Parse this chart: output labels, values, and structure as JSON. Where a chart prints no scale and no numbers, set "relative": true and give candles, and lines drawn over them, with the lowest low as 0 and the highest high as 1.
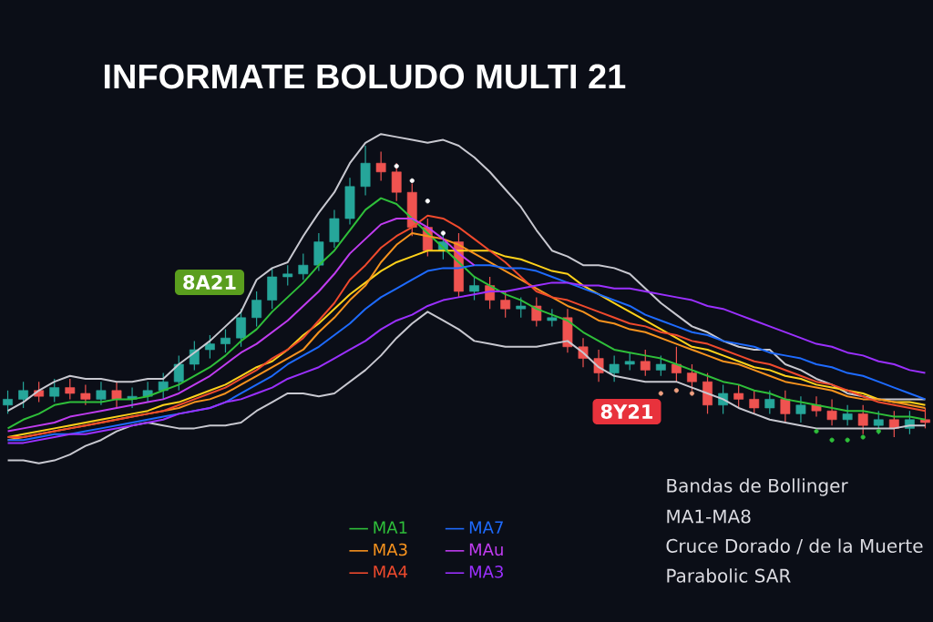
{
  "chart_data": {
    "type": "candlestick",
    "title": "INFORMATE BOLUDO MULTI 21",
    "relative": true,
    "legend": "bottom",
    "categories": [
      null,
      null,
      null,
      null,
      null,
      null,
      null,
      null,
      null,
      null,
      null,
      null,
      null,
      null,
      null,
      null,
      null,
      null,
      null,
      null,
      null,
      null,
      null,
      null,
      null,
      null,
      null,
      null,
      null,
      null,
      null,
      null,
      null,
      null,
      null,
      null,
      null,
      null,
      null,
      null,
      null,
      null,
      null,
      null,
      null,
      null,
      null,
      null,
      null,
      null,
      null,
      null,
      null,
      null,
      null,
      null,
      null,
      null,
      null,
      null
    ],
    "annotations": [
      "8A21",
      "8Y21",
      "Bandas de Bollinger",
      "MA1-MA8",
      "Cruce Dorado / de la Muerte",
      "Parabolic SAR"
    ],
    "series": [
      {
        "type": "line",
        "color": "#c8c8d0",
        "values": [
          0.09,
          0.12,
          0.16,
          0.19,
          0.21,
          0.2,
          0.2,
          0.19,
          0.19,
          0.2,
          0.2,
          0.25,
          0.29,
          0.33,
          0.38,
          0.43,
          0.54,
          0.58,
          0.6,
          0.69,
          0.77,
          0.84,
          0.94,
          1.01,
          1.04,
          1.03,
          1.02,
          1.01,
          1.02,
          1.0,
          0.96,
          0.91,
          0.85,
          0.79,
          0.71,
          0.64,
          0.62,
          0.59,
          0.59,
          0.58,
          0.56,
          0.51,
          0.46,
          0.42,
          0.38,
          0.36,
          0.33,
          0.31,
          0.3,
          0.3,
          0.25,
          0.23,
          0.2,
          0.18,
          0.15,
          0.14,
          0.13,
          0.13,
          0.13,
          0.13
        ]
      },
      {
        "type": "line",
        "color": "#c8c8d0",
        "values": [
          -0.08,
          -0.08,
          -0.09,
          -0.08,
          -0.06,
          -0.03,
          -0.01,
          0.02,
          0.04,
          0.05,
          0.04,
          0.03,
          0.03,
          0.04,
          0.04,
          0.05,
          0.09,
          0.12,
          0.15,
          0.15,
          0.14,
          0.15,
          0.19,
          0.23,
          0.28,
          0.34,
          0.39,
          0.43,
          0.4,
          0.37,
          0.33,
          0.32,
          0.31,
          0.31,
          0.31,
          0.32,
          0.33,
          0.29,
          0.24,
          0.21,
          0.2,
          0.19,
          0.19,
          0.19,
          0.17,
          0.15,
          0.13,
          0.1,
          0.08,
          0.06,
          0.05,
          0.04,
          0.03,
          0.03,
          0.03,
          0.03,
          0.03,
          0.03,
          0.04,
          0.04
        ]
      },
      {
        "type": "line",
        "color": "#ffd21a",
        "values": [
          0.0,
          0.01,
          0.02,
          0.03,
          0.04,
          0.05,
          0.06,
          0.07,
          0.08,
          0.09,
          0.11,
          0.12,
          0.14,
          0.16,
          0.18,
          0.21,
          0.24,
          0.26,
          0.3,
          0.35,
          0.39,
          0.44,
          0.49,
          0.53,
          0.57,
          0.6,
          0.62,
          0.64,
          0.64,
          0.64,
          0.64,
          0.64,
          0.62,
          0.61,
          0.59,
          0.57,
          0.56,
          0.52,
          0.49,
          0.46,
          0.43,
          0.4,
          0.37,
          0.34,
          0.31,
          0.3,
          0.28,
          0.26,
          0.24,
          0.23,
          0.21,
          0.2,
          0.18,
          0.17,
          0.16,
          0.15,
          0.13,
          0.12,
          0.12,
          0.11
        ]
      },
      {
        "type": "line",
        "name": "MA1",
        "color": "#2fbf3a",
        "values": [
          0.03,
          0.06,
          0.08,
          0.11,
          0.12,
          0.12,
          0.12,
          0.13,
          0.13,
          0.14,
          0.16,
          0.18,
          0.21,
          0.24,
          0.28,
          0.33,
          0.37,
          0.43,
          0.48,
          0.53,
          0.59,
          0.64,
          0.71,
          0.78,
          0.82,
          0.8,
          0.75,
          0.7,
          0.65,
          0.6,
          0.55,
          0.52,
          0.49,
          0.47,
          0.44,
          0.42,
          0.4,
          0.36,
          0.33,
          0.3,
          0.29,
          0.28,
          0.27,
          0.25,
          0.23,
          0.21,
          0.19,
          0.18,
          0.16,
          0.15,
          0.13,
          0.12,
          0.11,
          0.1,
          0.09,
          0.09,
          0.08,
          0.07,
          0.07,
          0.06
        ]
      },
      {
        "type": "line",
        "name": "MA3",
        "color": "#f7931e",
        "values": [
          -0.01,
          0.0,
          0.01,
          0.02,
          0.03,
          0.04,
          0.05,
          0.06,
          0.07,
          0.08,
          0.09,
          0.1,
          0.12,
          0.13,
          0.15,
          0.18,
          0.21,
          0.24,
          0.27,
          0.3,
          0.36,
          0.41,
          0.47,
          0.52,
          0.6,
          0.66,
          0.7,
          0.69,
          0.68,
          0.66,
          0.63,
          0.6,
          0.57,
          0.54,
          0.51,
          0.48,
          0.45,
          0.43,
          0.4,
          0.39,
          0.37,
          0.36,
          0.34,
          0.32,
          0.3,
          0.28,
          0.26,
          0.25,
          0.23,
          0.21,
          0.19,
          0.18,
          0.17,
          0.16,
          0.14,
          0.13,
          0.13,
          0.12,
          0.11,
          0.1
        ]
      },
      {
        "type": "line",
        "name": "MA4",
        "color": "#f04a2d",
        "values": [
          0.0,
          0.0,
          0.01,
          0.02,
          0.03,
          0.04,
          0.05,
          0.06,
          0.07,
          0.08,
          0.09,
          0.11,
          0.13,
          0.15,
          0.17,
          0.2,
          0.23,
          0.27,
          0.3,
          0.34,
          0.4,
          0.46,
          0.54,
          0.59,
          0.65,
          0.69,
          0.72,
          0.76,
          0.75,
          0.72,
          0.68,
          0.64,
          0.6,
          0.55,
          0.5,
          0.48,
          0.47,
          0.45,
          0.43,
          0.41,
          0.39,
          0.38,
          0.36,
          0.35,
          0.33,
          0.32,
          0.3,
          0.28,
          0.26,
          0.25,
          0.23,
          0.21,
          0.19,
          0.18,
          0.16,
          0.14,
          0.12,
          0.11,
          0.1,
          0.09
        ]
      },
      {
        "type": "line",
        "name": "MA7",
        "color": "#1e6bff",
        "values": [
          -0.01,
          -0.01,
          0.0,
          0.01,
          0.01,
          0.02,
          0.03,
          0.04,
          0.05,
          0.06,
          0.07,
          0.08,
          0.09,
          0.1,
          0.12,
          0.15,
          0.18,
          0.21,
          0.25,
          0.28,
          0.31,
          0.35,
          0.39,
          0.44,
          0.48,
          0.51,
          0.54,
          0.57,
          0.58,
          0.58,
          0.59,
          0.59,
          0.58,
          0.58,
          0.57,
          0.55,
          0.53,
          0.51,
          0.49,
          0.47,
          0.45,
          0.42,
          0.4,
          0.38,
          0.36,
          0.35,
          0.33,
          0.32,
          0.31,
          0.29,
          0.28,
          0.27,
          0.25,
          0.24,
          0.22,
          0.21,
          0.19,
          0.17,
          0.15,
          0.13
        ]
      },
      {
        "type": "line",
        "name": "MAu",
        "color": "#c03cf0",
        "values": [
          0.02,
          0.03,
          0.04,
          0.05,
          0.07,
          0.08,
          0.09,
          0.1,
          0.11,
          0.12,
          0.13,
          0.15,
          0.18,
          0.21,
          0.25,
          0.29,
          0.32,
          0.36,
          0.4,
          0.45,
          0.5,
          0.56,
          0.63,
          0.68,
          0.73,
          0.75,
          0.75,
          0.72,
          0.68,
          0.63,
          0.59,
          null,
          null,
          null,
          null,
          null,
          null,
          null,
          null,
          null,
          null,
          null,
          null,
          null,
          null,
          null,
          null,
          null,
          null,
          null,
          null,
          null,
          null,
          null,
          null,
          null,
          null,
          null,
          null,
          null
        ]
      },
      {
        "type": "line",
        "name": "MA3",
        "color": "#9b30ff",
        "values": [
          -0.02,
          -0.02,
          -0.01,
          0.0,
          0.01,
          0.01,
          0.02,
          0.03,
          0.04,
          0.05,
          0.06,
          0.08,
          0.09,
          0.1,
          0.12,
          0.13,
          0.15,
          0.17,
          0.2,
          0.22,
          0.24,
          0.27,
          0.3,
          0.33,
          0.37,
          0.4,
          0.42,
          0.45,
          0.47,
          0.48,
          0.49,
          0.5,
          0.5,
          0.51,
          0.52,
          0.53,
          0.53,
          0.52,
          0.52,
          0.51,
          0.51,
          0.5,
          0.49,
          0.48,
          0.47,
          0.45,
          0.44,
          0.42,
          0.4,
          0.38,
          0.36,
          0.34,
          0.32,
          0.31,
          0.29,
          0.28,
          0.26,
          0.25,
          0.23,
          0.22
        ]
      },
      {
        "type": "scatter",
        "marker": "circle",
        "color": "#ffffff",
        "values": [
          null,
          null,
          null,
          null,
          null,
          null,
          null,
          null,
          null,
          null,
          null,
          null,
          null,
          null,
          null,
          null,
          null,
          null,
          null,
          null,
          null,
          null,
          null,
          null,
          null,
          0.93,
          0.88,
          0.81,
          0.7,
          null,
          null,
          null,
          null,
          null,
          null,
          null,
          null,
          null,
          null,
          null,
          null,
          null,
          null,
          null,
          null,
          null,
          null,
          null,
          null,
          null,
          null,
          null,
          null,
          null,
          null,
          null,
          null,
          null,
          null,
          null
        ]
      },
      {
        "type": "scatter",
        "marker": "circle",
        "color": "#f0a080",
        "values": [
          null,
          null,
          null,
          null,
          null,
          null,
          null,
          null,
          null,
          null,
          null,
          null,
          null,
          null,
          null,
          null,
          null,
          null,
          null,
          null,
          null,
          null,
          null,
          null,
          null,
          null,
          null,
          null,
          null,
          null,
          null,
          null,
          null,
          null,
          null,
          null,
          null,
          null,
          null,
          null,
          null,
          null,
          0.15,
          0.16,
          0.15,
          null,
          null,
          null,
          null,
          null,
          null,
          null,
          null,
          null,
          null,
          null,
          null,
          null,
          null,
          null
        ]
      },
      {
        "type": "scatter",
        "marker": "circle",
        "color": "#2fbf3a",
        "values": [
          null,
          null,
          null,
          null,
          null,
          null,
          null,
          null,
          null,
          null,
          null,
          null,
          null,
          null,
          null,
          null,
          null,
          null,
          null,
          null,
          null,
          null,
          null,
          null,
          null,
          null,
          null,
          null,
          null,
          null,
          null,
          null,
          null,
          null,
          null,
          null,
          null,
          null,
          null,
          null,
          null,
          null,
          null,
          null,
          null,
          null,
          null,
          null,
          null,
          null,
          null,
          null,
          0.02,
          -0.01,
          -0.01,
          0.0,
          0.02,
          null,
          null,
          null
        ]
      },
      {
        "type": "candlestick",
        "colors": [
          "#26a69a",
          "#26a69a",
          "#ef5350",
          "#26a69a",
          "#ef5350",
          "#ef5350",
          "#26a69a",
          "#ef5350",
          "#26a69a",
          "#26a69a",
          "#26a69a",
          "#26a69a",
          "#26a69a",
          "#26a69a",
          "#26a69a",
          "#26a69a",
          "#26a69a",
          "#26a69a",
          "#26a69a",
          "#26a69a",
          "#26a69a",
          "#26a69a",
          "#26a69a",
          "#26a69a",
          "#ef5350",
          "#ef5350",
          "#ef5350",
          "#ef5350",
          "#26a69a",
          "#ef5350",
          "#26a69a",
          "#ef5350",
          "#ef5350",
          "#26a69a",
          "#ef5350",
          "#26a69a",
          "#ef5350",
          "#ef5350",
          "#ef5350",
          "#26a69a",
          "#26a69a",
          "#ef5350",
          "#26a69a",
          "#ef5350",
          "#ef5350",
          "#ef5350",
          "#26a69a",
          "#ef5350",
          "#ef5350",
          "#26a69a",
          "#ef5350",
          "#26a69a",
          "#ef5350",
          "#ef5350",
          "#26a69a",
          "#ef5350",
          "#26a69a",
          "#ef5350",
          "#26a69a",
          "#ef5350"
        ],
        "ohlc": [
          [
            0.11,
            0.16,
            0.08,
            0.13
          ],
          [
            0.13,
            0.19,
            0.1,
            0.16
          ],
          [
            0.16,
            0.19,
            0.12,
            0.14
          ],
          [
            0.14,
            0.2,
            0.12,
            0.17
          ],
          [
            0.17,
            0.2,
            0.13,
            0.15
          ],
          [
            0.15,
            0.18,
            0.11,
            0.13
          ],
          [
            0.13,
            0.19,
            0.11,
            0.16
          ],
          [
            0.16,
            0.19,
            0.1,
            0.13
          ],
          [
            0.13,
            0.17,
            0.1,
            0.14
          ],
          [
            0.14,
            0.19,
            0.12,
            0.16
          ],
          [
            0.16,
            0.22,
            0.13,
            0.19
          ],
          [
            0.19,
            0.28,
            0.16,
            0.25
          ],
          [
            0.25,
            0.33,
            0.23,
            0.3
          ],
          [
            0.3,
            0.35,
            0.27,
            0.32
          ],
          [
            0.32,
            0.37,
            0.29,
            0.34
          ],
          [
            0.34,
            0.44,
            0.31,
            0.41
          ],
          [
            0.41,
            0.5,
            0.38,
            0.47
          ],
          [
            0.47,
            0.58,
            0.44,
            0.55
          ],
          [
            0.55,
            0.59,
            0.52,
            0.56
          ],
          [
            0.56,
            0.63,
            0.54,
            0.59
          ],
          [
            0.59,
            0.7,
            0.57,
            0.67
          ],
          [
            0.67,
            0.78,
            0.65,
            0.75
          ],
          [
            0.75,
            0.89,
            0.73,
            0.86
          ],
          [
            0.86,
            1,
            0.83,
            0.94
          ],
          [
            0.94,
            0.98,
            0.88,
            0.91
          ],
          [
            0.91,
            0.94,
            0.81,
            0.84
          ],
          [
            0.84,
            0.87,
            0.69,
            0.72
          ],
          [
            0.72,
            0.75,
            0.62,
            0.64
          ],
          [
            0.64,
            0.7,
            0.61,
            0.67
          ],
          [
            0.67,
            0.7,
            0.48,
            0.5
          ],
          [
            0.5,
            0.55,
            0.47,
            0.52
          ],
          [
            0.52,
            0.55,
            0.44,
            0.47
          ],
          [
            0.47,
            0.5,
            0.41,
            0.44
          ],
          [
            0.44,
            0.48,
            0.41,
            0.45
          ],
          [
            0.45,
            0.48,
            0.38,
            0.4
          ],
          [
            0.4,
            0.44,
            0.38,
            0.41
          ],
          [
            0.41,
            0.44,
            0.29,
            0.31
          ],
          [
            0.31,
            0.34,
            0.24,
            0.27
          ],
          [
            0.27,
            0.3,
            0.19,
            0.22
          ],
          [
            0.22,
            0.28,
            0.19,
            0.25
          ],
          [
            0.25,
            0.29,
            0.23,
            0.26
          ],
          [
            0.26,
            0.3,
            0.21,
            0.23
          ],
          [
            0.23,
            0.28,
            0.21,
            0.25
          ],
          [
            0.25,
            0.31,
            0.19,
            0.22
          ],
          [
            0.22,
            0.25,
            0.16,
            0.19
          ],
          [
            0.19,
            0.22,
            0.08,
            0.11
          ],
          [
            0.11,
            0.18,
            0.08,
            0.15
          ],
          [
            0.15,
            0.18,
            0.1,
            0.13
          ],
          [
            0.13,
            0.16,
            0.08,
            0.1
          ],
          [
            0.1,
            0.16,
            0.08,
            0.13
          ],
          [
            0.13,
            0.16,
            0.05,
            0.08
          ],
          [
            0.08,
            0.14,
            0.05,
            0.11
          ],
          [
            0.11,
            0.14,
            0.07,
            0.09
          ],
          [
            0.09,
            0.13,
            0.04,
            0.06
          ],
          [
            0.06,
            0.11,
            0.04,
            0.08
          ],
          [
            0.08,
            0.11,
            0.01,
            0.04
          ],
          [
            0.04,
            0.09,
            0.01,
            0.06
          ],
          [
            0.06,
            0.09,
            0,
            0.03
          ],
          [
            0.03,
            0.09,
            0.01,
            0.06
          ],
          [
            0.06,
            0.1,
            0.03,
            0.05
          ]
        ]
      }
    ]
  }
}
